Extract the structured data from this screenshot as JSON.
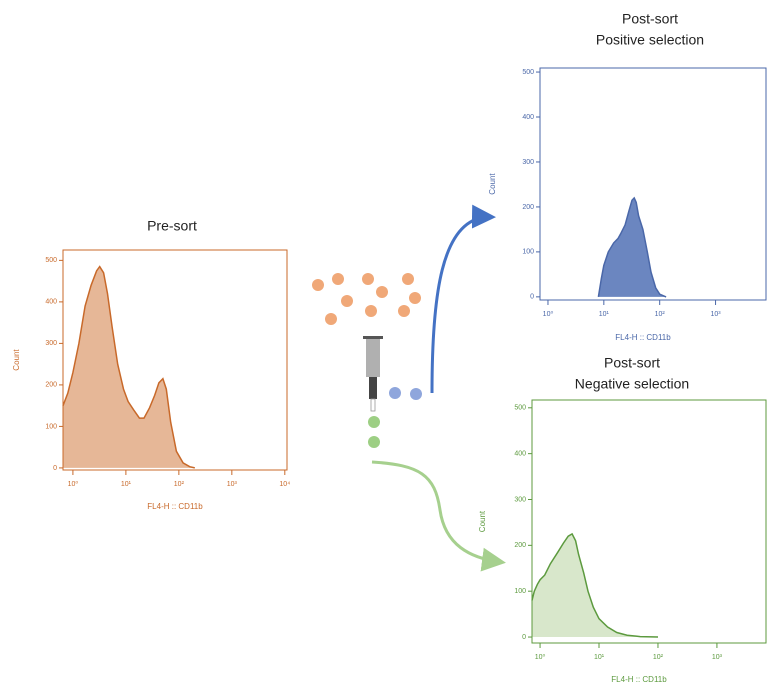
{
  "chart_data": [
    {
      "type": "area",
      "title": "Pre-sort",
      "x_label": "FL4-H :: CD11b",
      "y_label": "Count",
      "color": "#c8692a",
      "fill_color": "#e6b797",
      "log_x": true,
      "x": [
        0.65,
        0.8,
        1.0,
        1.3,
        1.7,
        2.2,
        2.8,
        3.2,
        3.8,
        4.5,
        5.5,
        7,
        9,
        11,
        14,
        18,
        22,
        28,
        35,
        42,
        50,
        58,
        70,
        90,
        120,
        160,
        200
      ],
      "values": [
        150,
        180,
        230,
        300,
        390,
        440,
        475,
        485,
        470,
        420,
        340,
        250,
        190,
        160,
        140,
        120,
        120,
        145,
        175,
        205,
        215,
        190,
        110,
        40,
        12,
        3,
        0
      ],
      "xlim": [
        0.65,
        11000
      ],
      "ylim": [
        -5,
        525
      ],
      "xticks": [
        {
          "value": 1,
          "label": "10⁰"
        },
        {
          "value": 10,
          "label": "10¹"
        },
        {
          "value": 100,
          "label": "10²"
        },
        {
          "value": 1000,
          "label": "10³"
        },
        {
          "value": 10000,
          "label": "10⁴"
        }
      ],
      "yticks": [
        0,
        100,
        200,
        300,
        400,
        500
      ]
    },
    {
      "type": "area",
      "title": "Post-sort",
      "subtitle": "Positive selection",
      "x_label": "FL4-H :: CD11b",
      "y_label": "Count",
      "color": "#4a67a8",
      "fill_color": "#6b86c0",
      "log_x": true,
      "x": [
        8,
        9,
        10,
        12,
        15,
        18,
        20,
        24,
        28,
        32,
        35,
        38,
        42,
        50,
        60,
        70,
        85,
        100,
        130
      ],
      "values": [
        0,
        40,
        70,
        100,
        120,
        130,
        140,
        160,
        190,
        215,
        220,
        210,
        180,
        150,
        100,
        55,
        20,
        6,
        0
      ],
      "xlim": [
        0.72,
        8000
      ],
      "ylim": [
        -7,
        509
      ],
      "xticks": [
        {
          "value": 1,
          "label": "10⁰"
        },
        {
          "value": 10,
          "label": "10¹"
        },
        {
          "value": 100,
          "label": "10²"
        },
        {
          "value": 1000,
          "label": "10³"
        }
      ],
      "yticks": [
        0,
        100,
        200,
        300,
        400,
        500
      ]
    },
    {
      "type": "area",
      "title": "Post-sort",
      "subtitle": "Negative selection",
      "x_label": "FL4-H :: CD11b",
      "y_label": "Count",
      "color": "#5c9a3e",
      "fill_color": "#d8e7cb",
      "log_x": true,
      "x": [
        0.73,
        0.8,
        0.9,
        1.0,
        1.2,
        1.5,
        2.0,
        2.5,
        3.0,
        3.5,
        4.0,
        4.5,
        5.5,
        6.5,
        8,
        10,
        14,
        20,
        30,
        50,
        100
      ],
      "values": [
        80,
        100,
        115,
        125,
        135,
        160,
        185,
        205,
        220,
        225,
        210,
        180,
        140,
        100,
        65,
        40,
        22,
        10,
        4,
        1,
        0
      ],
      "xlim": [
        0.73,
        6800
      ],
      "ylim": [
        -13,
        517
      ],
      "xticks": [
        {
          "value": 1,
          "label": "10⁰"
        },
        {
          "value": 10,
          "label": "10¹"
        },
        {
          "value": 100,
          "label": "10²"
        },
        {
          "value": 1000,
          "label": "10³"
        }
      ],
      "yticks": [
        0,
        100,
        200,
        300,
        400,
        500
      ]
    }
  ]
}
